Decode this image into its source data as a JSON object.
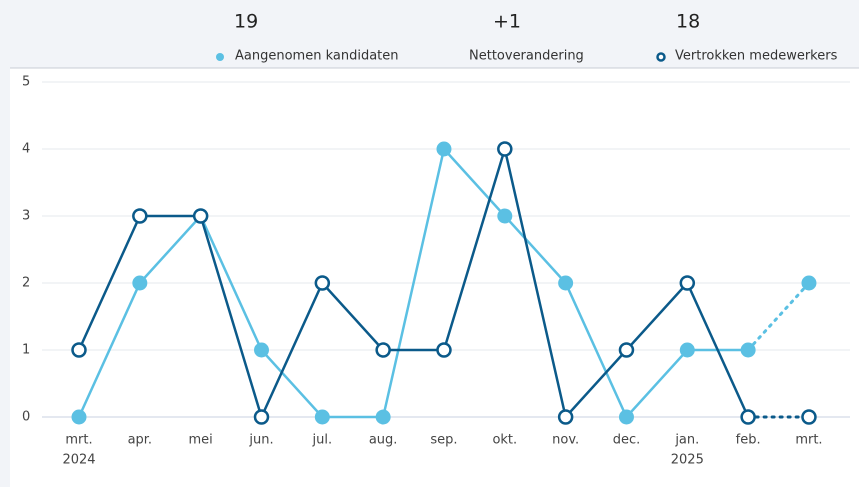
{
  "summary": [
    {
      "value": "19",
      "label": "Aangenomen kandidaten"
    },
    {
      "value": "+1",
      "label": "Nettoverandering"
    },
    {
      "value": "18",
      "label": "Vertrokken medewerkers"
    }
  ],
  "chart_data": {
    "type": "line",
    "categories": [
      "mrt.",
      "apr.",
      "mei",
      "jun.",
      "jul.",
      "aug.",
      "sep.",
      "okt.",
      "nov.",
      "dec.",
      "jan.",
      "feb.",
      "mrt."
    ],
    "category_years": [
      "2024",
      null,
      null,
      null,
      null,
      null,
      null,
      null,
      null,
      null,
      "2025",
      null,
      null
    ],
    "series": [
      {
        "name": "Aangenomen kandidaten",
        "color": "#5bc0e3",
        "marker": "filled",
        "values": [
          0,
          2,
          3,
          1,
          0,
          0,
          4,
          3,
          2,
          0,
          1,
          1,
          2
        ]
      },
      {
        "name": "Vertrokken medewerkers",
        "color": "#0b5a8a",
        "marker": "open",
        "values": [
          1,
          3,
          3,
          0,
          2,
          1,
          1,
          4,
          0,
          1,
          2,
          0,
          0
        ]
      }
    ],
    "dotted_last_segment": true,
    "ylim": [
      0,
      5
    ],
    "yticks": [
      0,
      1,
      2,
      3,
      4,
      5
    ],
    "grid": true
  }
}
